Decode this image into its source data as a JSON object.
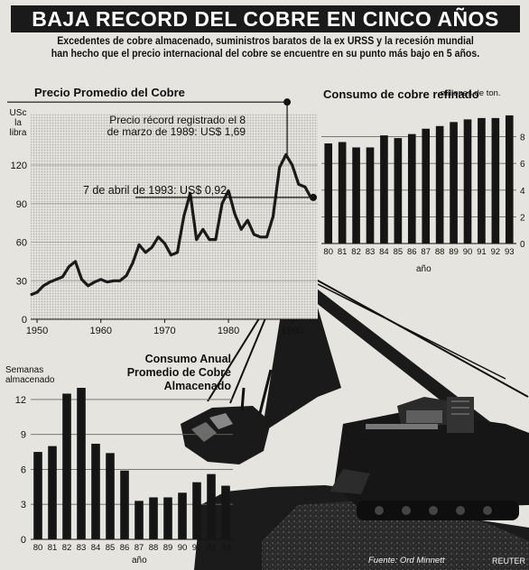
{
  "header": {
    "title": "BAJA RECORD DEL COBRE EN CINCO AÑOS",
    "subtitle_line1": "Excedentes de cobre almacenado, suministros baratos de la ex URSS y la recesión mundial",
    "subtitle_line2": "han hecho que el precio internacional del cobre se encuentre en su punto más bajo en 5 años."
  },
  "colors": {
    "banner": "#1a1a1a",
    "bars": "#151515",
    "line": "#222222",
    "background": "#e6e4de"
  },
  "chart_data": [
    {
      "type": "line",
      "title": "Precio Promedio del Cobre",
      "ylabel": "USc la libra",
      "ylabel_lines": [
        "USc",
        "la",
        "libra"
      ],
      "yticks": [
        0,
        30,
        60,
        90,
        120
      ],
      "xticks": [
        1950,
        1960,
        1970,
        1980,
        1990
      ],
      "xlim": [
        1949,
        1994
      ],
      "ylim": [
        0,
        160
      ],
      "grid": true,
      "annotations": [
        {
          "lines": [
            "Precio récord registrado el 8",
            "de marzo de 1989: US$ 1,69"
          ],
          "x": 1989.2,
          "y": 169
        },
        {
          "lines": [
            "7 de abril de 1993: US$ 0,92"
          ],
          "x": 1993.3,
          "y": 92
        }
      ],
      "x": [
        1949,
        1950,
        1951,
        1952,
        1953,
        1954,
        1955,
        1956,
        1957,
        1958,
        1959,
        1960,
        1961,
        1962,
        1963,
        1964,
        1965,
        1966,
        1967,
        1968,
        1969,
        1970,
        1971,
        1972,
        1973,
        1974,
        1975,
        1976,
        1977,
        1978,
        1979,
        1980,
        1981,
        1982,
        1983,
        1984,
        1985,
        1986,
        1987,
        1988,
        1989,
        1990,
        1991,
        1992,
        1993
      ],
      "values": [
        19,
        21,
        26,
        29,
        31,
        33,
        41,
        45,
        31,
        26,
        29,
        31,
        29,
        30,
        30,
        34,
        44,
        58,
        52,
        56,
        64,
        59,
        50,
        52,
        80,
        98,
        62,
        70,
        62,
        62,
        90,
        100,
        82,
        70,
        77,
        66,
        64,
        64,
        80,
        118,
        128,
        120,
        105,
        103,
        94
      ]
    },
    {
      "type": "bar",
      "title": "Consumo de cobre refinado",
      "ylabel": "millones de ton.",
      "xlabel": "año",
      "categories": [
        "80",
        "81",
        "82",
        "83",
        "84",
        "85",
        "86",
        "87",
        "88",
        "89",
        "90",
        "91",
        "92",
        "93"
      ],
      "values": [
        7.5,
        7.6,
        7.2,
        7.2,
        8.1,
        7.9,
        8.2,
        8.6,
        8.8,
        9.1,
        9.3,
        9.4,
        9.4,
        9.6
      ],
      "yticks": [
        0,
        2,
        4,
        6,
        8
      ],
      "ylim": [
        0,
        10
      ],
      "grid": true
    },
    {
      "type": "bar",
      "title": "Consumo Anual Promedio de Cobre Almacenado",
      "title_lines": [
        "Consumo Anual",
        "Promedio de Cobre",
        "Almacenado"
      ],
      "ylabel": "Semanas almacenado",
      "ylabel_lines": [
        "Semanas",
        "almacenado"
      ],
      "xlabel": "año",
      "categories": [
        "80",
        "81",
        "82",
        "83",
        "84",
        "85",
        "86",
        "87",
        "88",
        "89",
        "90",
        "91",
        "92",
        "93"
      ],
      "values": [
        7.5,
        8.0,
        12.5,
        13.0,
        8.2,
        7.4,
        5.9,
        3.3,
        3.6,
        3.6,
        4.0,
        4.9,
        5.6,
        4.6
      ],
      "yticks": [
        0,
        3,
        6,
        9,
        12
      ],
      "ylim": [
        0,
        13
      ],
      "grid": true
    }
  ],
  "footer": {
    "source": "Fuente: Ord Minnett",
    "agency": "REUTER"
  }
}
